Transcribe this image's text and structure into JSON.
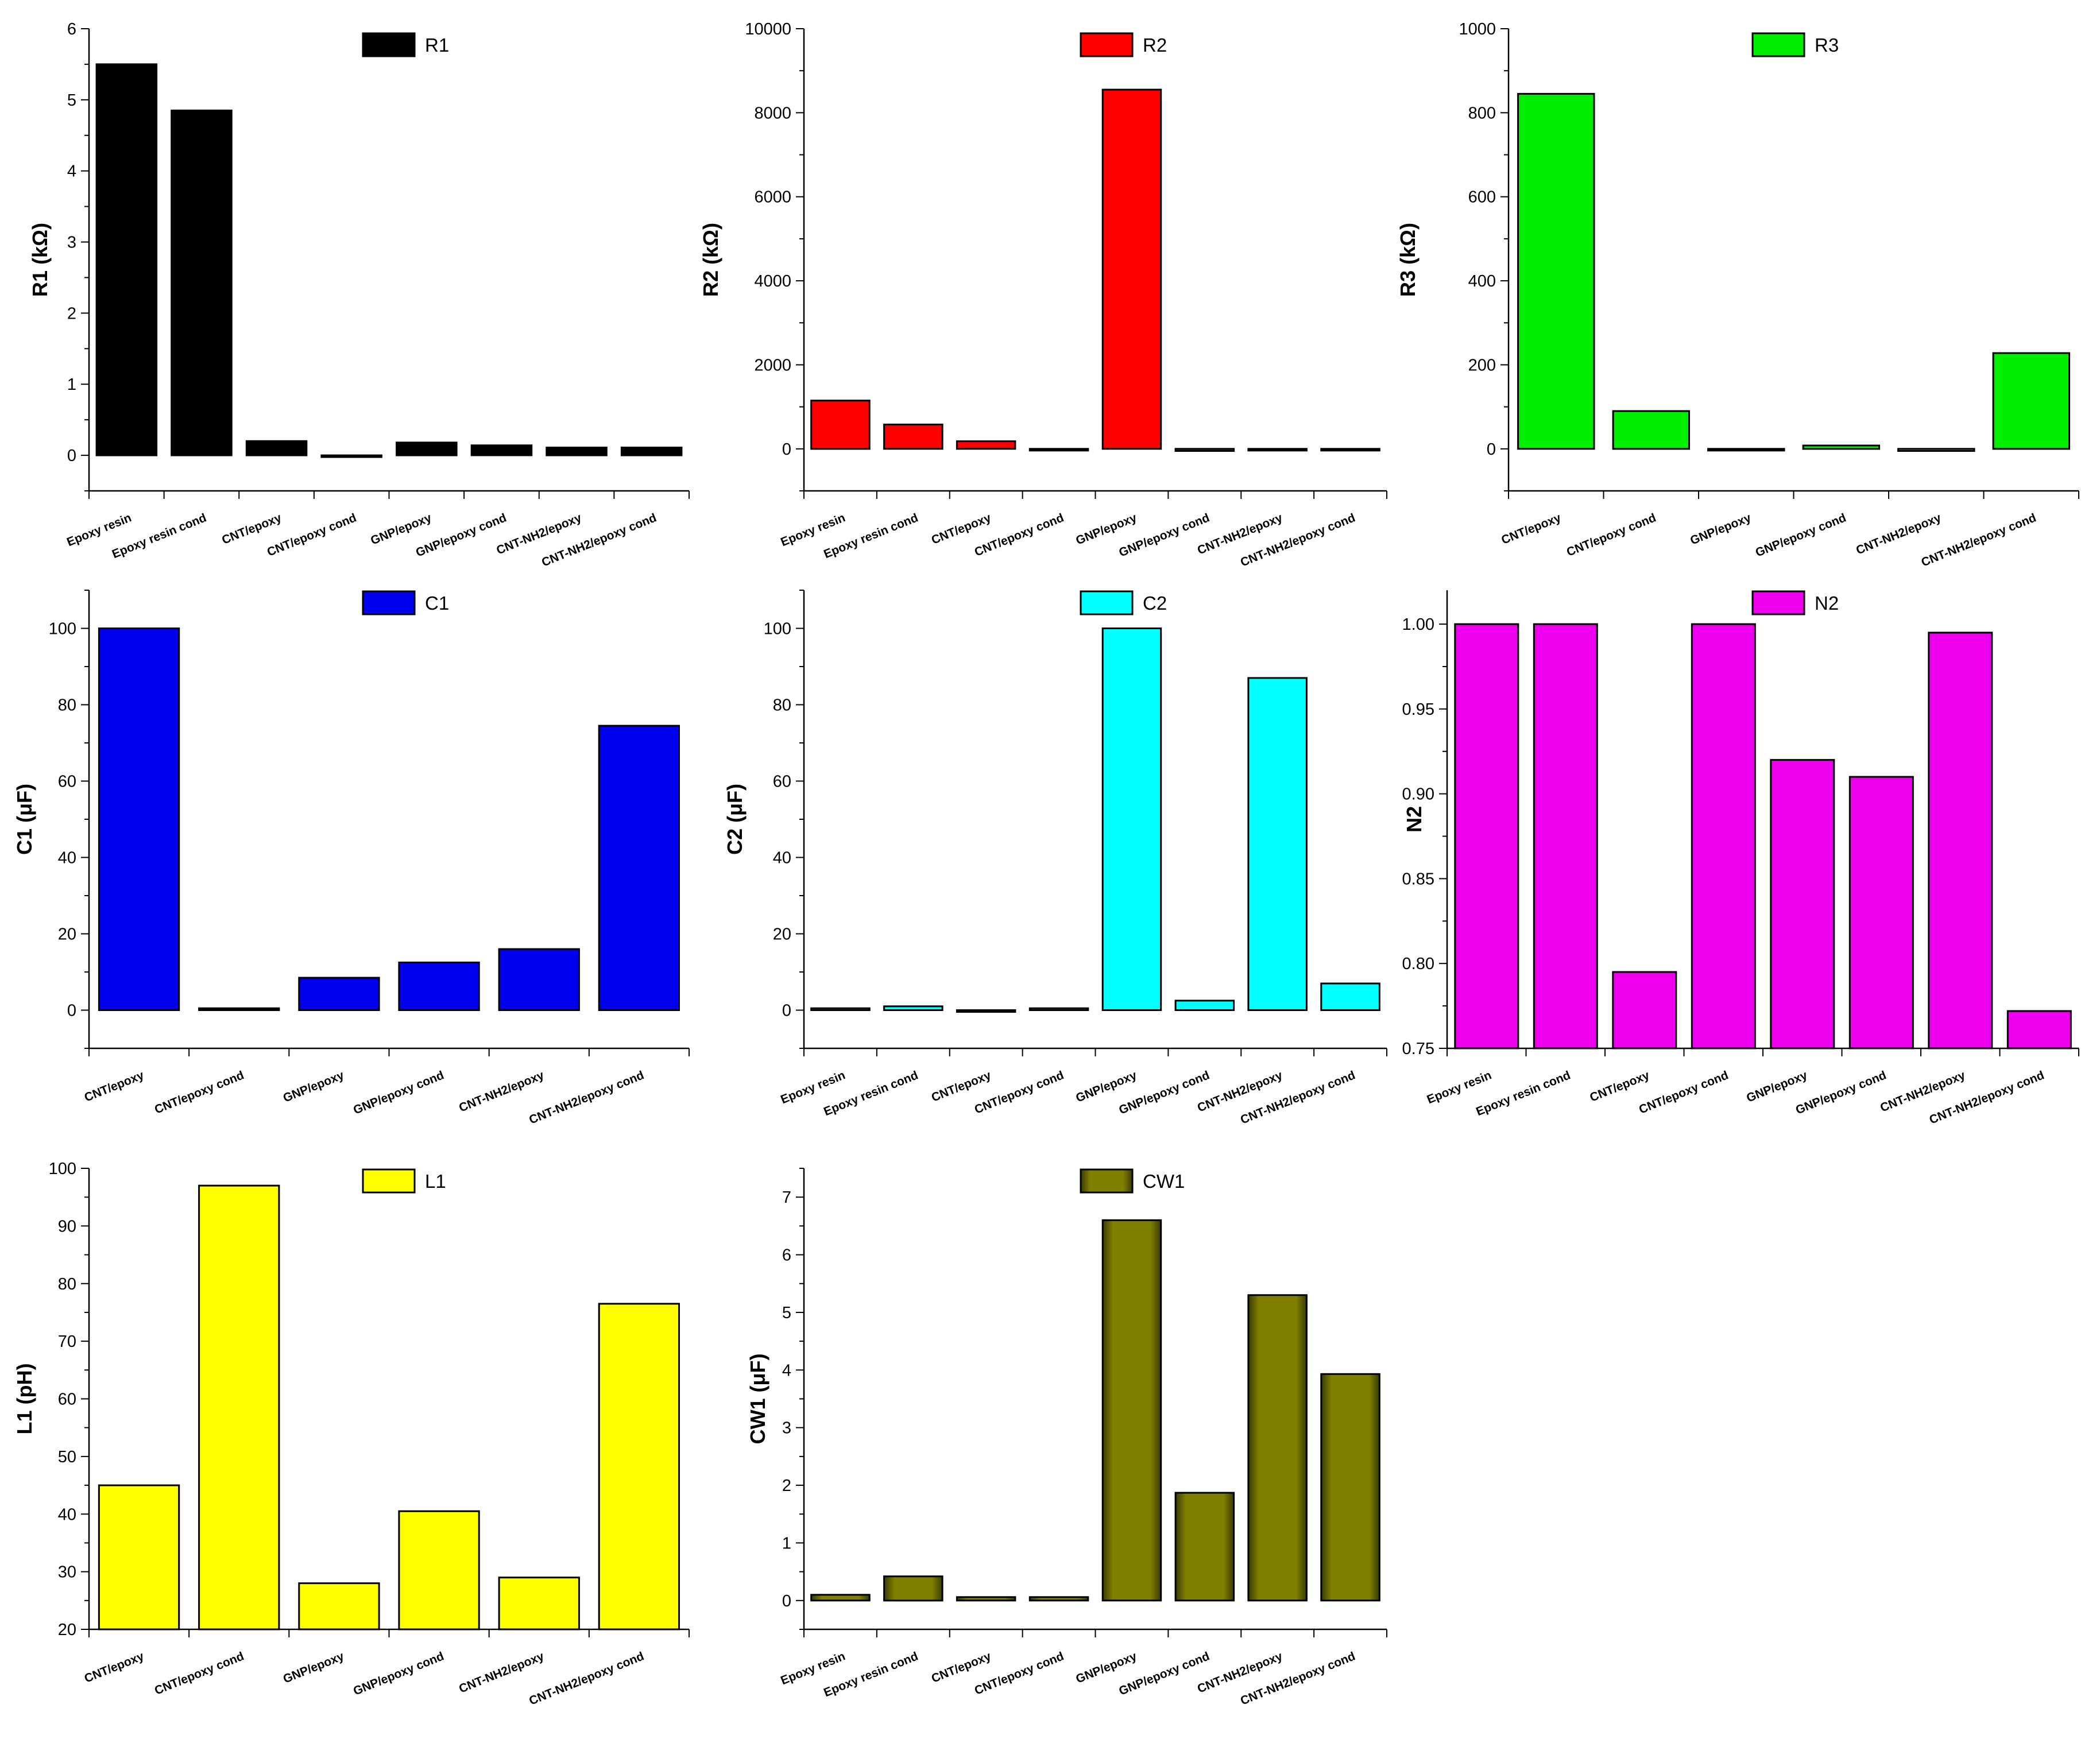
{
  "figure": {
    "panel_count": 8
  },
  "chart_data": [
    {
      "type": "bar",
      "title": "R1",
      "legend": "R1",
      "ylabel": "R1 (kΩ)",
      "xlabel": "",
      "color": "#000000",
      "categories": [
        "Epoxy resin",
        "Epoxy resin cond",
        "CNT/epoxy",
        "CNT/epoxy cond",
        "GNP/epoxy",
        "GNP/epoxy cond",
        "CNT-NH2/epoxy",
        "CNT-NH2/epoxy cond"
      ],
      "values": [
        5.5,
        4.85,
        0.2,
        -0.02,
        0.18,
        0.14,
        0.11,
        0.11
      ],
      "ylim": [
        -0.5,
        6
      ],
      "yticks": [
        0,
        1,
        2,
        3,
        4,
        5,
        6
      ],
      "minor_step": 0.5
    },
    {
      "type": "bar",
      "title": "R2",
      "legend": "R2",
      "ylabel": "R2 (kΩ)",
      "xlabel": "",
      "color": "#ff0000",
      "categories": [
        "Epoxy resin",
        "Epoxy resin cond",
        "CNT/epoxy",
        "CNT/epoxy cond",
        "GNP/epoxy",
        "GNP/epoxy cond",
        "CNT-NH2/epoxy",
        "CNT-NH2/epoxy cond"
      ],
      "values": [
        1150,
        580,
        180,
        0,
        8550,
        -50,
        0,
        0
      ],
      "ylim": [
        -1000,
        10000
      ],
      "yticks": [
        0,
        2000,
        4000,
        6000,
        8000,
        10000
      ],
      "minor_step": 1000
    },
    {
      "type": "bar",
      "title": "R3",
      "legend": "R3",
      "ylabel": "R3 (kΩ)",
      "xlabel": "",
      "color": "#00ee00",
      "categories": [
        "CNT/epoxy",
        "CNT/epoxy cond",
        "GNP/epoxy",
        "GNP/epoxy cond",
        "CNT-NH2/epoxy",
        "CNT-NH2/epoxy cond"
      ],
      "values": [
        845,
        90,
        0,
        8,
        -5,
        228
      ],
      "ylim": [
        -100,
        1000
      ],
      "yticks": [
        0,
        200,
        400,
        600,
        800,
        1000
      ],
      "minor_step": 100
    },
    {
      "type": "bar",
      "title": "C1",
      "legend": "C1",
      "ylabel": "C1 (μF)",
      "xlabel": "",
      "color": "#0000ee",
      "categories": [
        "CNT/epoxy",
        "CNT/epoxy cond",
        "GNP/epoxy",
        "GNP/epoxy cond",
        "CNT-NH2/epoxy",
        "CNT-NH2/epoxy cond"
      ],
      "values": [
        100,
        0.5,
        8.5,
        12.5,
        16,
        74.5
      ],
      "ylim": [
        -10,
        110
      ],
      "yticks": [
        0,
        20,
        40,
        60,
        80,
        100
      ],
      "minor_step": 10
    },
    {
      "type": "bar",
      "title": "C2",
      "legend": "C2",
      "ylabel": "C2 (μF)",
      "xlabel": "",
      "color": "#00ffff",
      "categories": [
        "Epoxy resin",
        "Epoxy resin cond",
        "CNT/epoxy",
        "CNT/epoxy cond",
        "GNP/epoxy",
        "GNP/epoxy cond",
        "CNT-NH2/epoxy",
        "CNT-NH2/epoxy cond"
      ],
      "values": [
        0.5,
        1,
        0,
        0.5,
        100,
        2.5,
        87,
        7
      ],
      "ylim": [
        -10,
        110
      ],
      "yticks": [
        0,
        20,
        40,
        60,
        80,
        100
      ],
      "minor_step": 10
    },
    {
      "type": "bar",
      "title": "N2",
      "legend": "N2",
      "ylabel": "N2",
      "xlabel": "",
      "color": "#ee00ee",
      "categories": [
        "Epoxy resin",
        "Epoxy resin cond",
        "CNT/epoxy",
        "CNT/epoxy cond",
        "GNP/epoxy",
        "GNP/epoxy cond",
        "CNT-NH2/epoxy",
        "CNT-NH2/epoxy cond"
      ],
      "values": [
        1.0,
        1.0,
        0.795,
        1.0,
        0.92,
        0.91,
        0.995,
        0.772
      ],
      "ylim": [
        0.75,
        1.02
      ],
      "yticks": [
        0.75,
        0.8,
        0.85,
        0.9,
        0.95,
        1.0
      ],
      "minor_step": 0.025,
      "tick_format": "2"
    },
    {
      "type": "bar",
      "title": "L1",
      "legend": "L1",
      "ylabel": "L1 (pH)",
      "xlabel": "",
      "color": "#ffff00",
      "categories": [
        "CNT/epoxy",
        "CNT/epoxy cond",
        "GNP/epoxy",
        "GNP/epoxy cond",
        "CNT-NH2/epoxy",
        "CNT-NH2/epoxy cond"
      ],
      "values": [
        45,
        97,
        28,
        40.5,
        29,
        76.5
      ],
      "ylim": [
        20,
        100
      ],
      "yticks": [
        20,
        30,
        40,
        50,
        60,
        70,
        80,
        90,
        100
      ],
      "minor_step": 5
    },
    {
      "type": "bar",
      "title": "CW1",
      "legend": "CW1",
      "ylabel": "CW1 (μF)",
      "xlabel": "",
      "color": "#808000",
      "categories": [
        "Epoxy resin",
        "Epoxy resin cond",
        "CNT/epoxy",
        "CNT/epoxy cond",
        "GNP/epoxy",
        "GNP/epoxy cond",
        "CNT-NH2/epoxy",
        "CNT-NH2/epoxy cond"
      ],
      "values": [
        0.1,
        0.42,
        0.06,
        0.06,
        6.6,
        1.87,
        5.3,
        3.93
      ],
      "ylim": [
        -0.5,
        7.5
      ],
      "yticks": [
        0,
        1,
        2,
        3,
        4,
        5,
        6,
        7
      ],
      "minor_step": 0.5
    }
  ]
}
